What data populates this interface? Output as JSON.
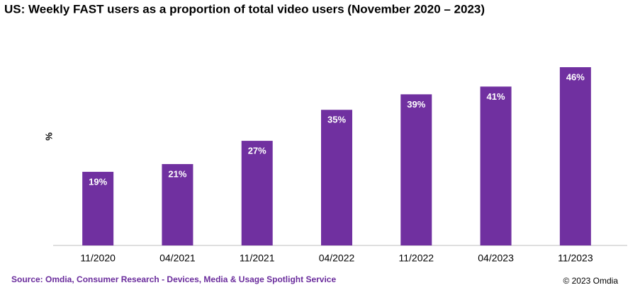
{
  "chart_data": {
    "type": "bar",
    "title": "US: Weekly FAST users as a proportion of total video users (November 2020 – 2023)",
    "y_label": "%",
    "categories": [
      "11/2020",
      "04/2021",
      "11/2021",
      "04/2022",
      "11/2022",
      "04/2023",
      "11/2023"
    ],
    "values": [
      19,
      21,
      27,
      35,
      39,
      41,
      46
    ],
    "value_labels": [
      "19%",
      "21%",
      "27%",
      "35%",
      "39%",
      "41%",
      "46%"
    ],
    "color": "#7030a0",
    "source": "Source: Omdia, Consumer Research - Devices, Media & Usage Spotlight Service",
    "copyright": "© 2023 Omdia"
  }
}
